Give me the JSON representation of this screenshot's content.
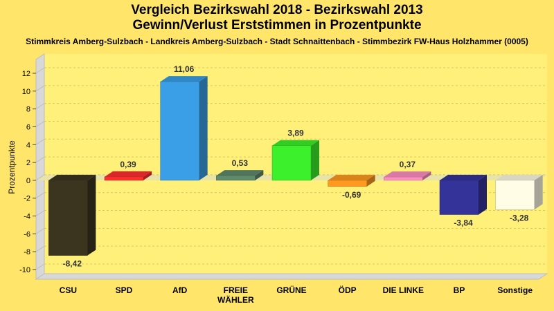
{
  "header": {
    "title_line1": "Vergleich Bezirkswahl 2018 - Bezirkswahl 2013",
    "title_line2": "Gewinn/Verlust Erststimmen in Prozentpunkte",
    "subtitle": "Stimmkreis Amberg-Sulzbach - Landkreis Amberg-Sulzbach - Stadt Schnaittenbach - Stimmbezirk FW-Haus Holzhammer (0005)"
  },
  "chart_data": {
    "type": "bar",
    "title": "Vergleich Bezirkswahl 2018 - Bezirkswahl 2013",
    "subtitle": "Gewinn/Verlust Erststimmen in Prozentpunkte",
    "xlabel": "",
    "ylabel": "Prozentpunkte",
    "ylim": [
      -10,
      12
    ],
    "yticks": [
      -10,
      -8,
      -6,
      -4,
      -2,
      0,
      2,
      4,
      6,
      8,
      10,
      12
    ],
    "grid": true,
    "categories": [
      "CSU",
      "SPD",
      "AfD",
      "FREIE WÄHLER",
      "GRÜNE",
      "ÖDP",
      "DIE LINKE",
      "BP",
      "Sonstige"
    ],
    "category_labels": [
      [
        "CSU"
      ],
      [
        "SPD"
      ],
      [
        "AfD"
      ],
      [
        "FREIE",
        "WÄHLER"
      ],
      [
        "GRÜNE"
      ],
      [
        "ÖDP"
      ],
      [
        "DIE LINKE"
      ],
      [
        "BP"
      ],
      [
        "Sonstige"
      ]
    ],
    "values": [
      -8.42,
      0.39,
      11.06,
      0.53,
      3.89,
      -0.69,
      0.37,
      -3.84,
      -3.28
    ],
    "value_labels": [
      "-8,42",
      "0,39",
      "11,06",
      "0,53",
      "3,89",
      "-0,69",
      "0,37",
      "-3,84",
      "-3,28"
    ],
    "colors": [
      "#3b3520",
      "#ff2f2f",
      "#3a9fe6",
      "#5f8a6b",
      "#3cf02b",
      "#ff9a1f",
      "#ff8fc2",
      "#33339a",
      "#fffde6"
    ]
  }
}
